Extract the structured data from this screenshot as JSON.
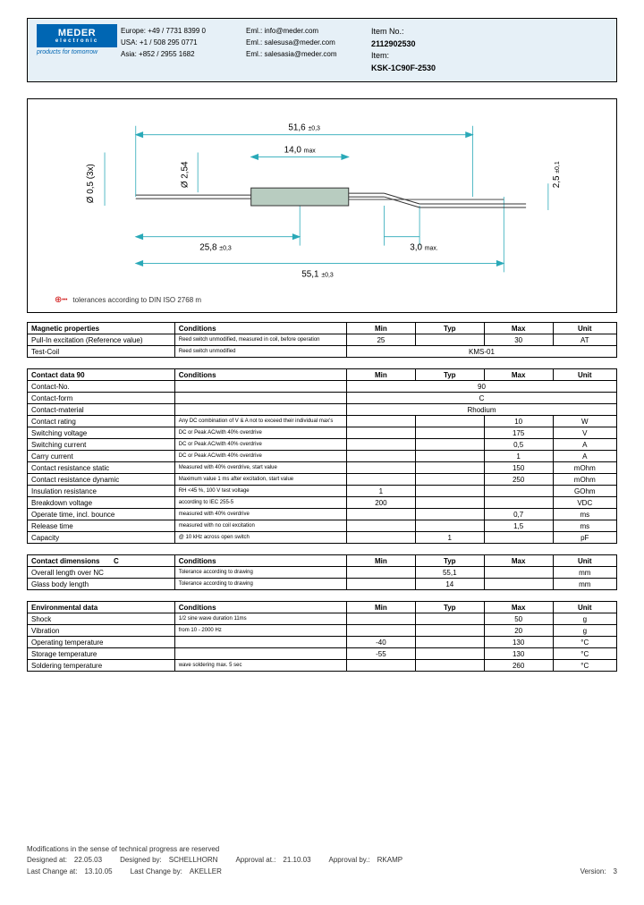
{
  "header": {
    "logo_main": "MEDER",
    "logo_sub": "electronic",
    "tagline": "products for tomorrow",
    "contacts": {
      "eu_phone_label": "Europe:",
      "eu_phone": "+49 / 7731 8399 0",
      "eu_email_label": "Eml.:",
      "eu_email": "info@meder.com",
      "us_phone_label": "USA:",
      "us_phone": "+1 / 508 295 0771",
      "us_email_label": "Eml.:",
      "us_email": "salesusa@meder.com",
      "as_phone_label": "Asia:",
      "as_phone": "+852 / 2955 1682",
      "as_email_label": "Eml.:",
      "as_email": "salesasia@meder.com"
    },
    "item_no_label": "Item No.:",
    "item_no": "2112902530",
    "item_label": "Item:",
    "item": "KSK-1C90F-2530"
  },
  "drawing": {
    "dim_516": "51,6",
    "tol_516": "±0,3",
    "dim_14": "14,0",
    "tol_14": "max",
    "dim_258": "25,8",
    "tol_258": "±0,3",
    "dim_551": "55,1",
    "tol_551": "±0,3",
    "dim_30": "3,0",
    "tol_30": "max.",
    "dim_25v": "2,5",
    "tol_25v": "±0,1",
    "dim_05": "Ø 0,5 (3x)",
    "dim_254": "Ø 2,54",
    "tolerance_note": "tolerances according to DIN ISO 2768 m",
    "colors": {
      "dim_line": "#2aa9b8",
      "part_body": "#b8ccc0",
      "part_outline": "#333333"
    }
  },
  "tables": {
    "magnetic": {
      "title": "Magnetic properties",
      "headers": [
        "Conditions",
        "Min",
        "Typ",
        "Max",
        "Unit"
      ],
      "rows": [
        {
          "param": "Pull-In excitation (Reference value)",
          "cond": "Reed switch unmodified, measured in coil, before operation",
          "min": "25",
          "typ": "",
          "max": "30",
          "unit": "AT"
        },
        {
          "param": "Test-Coil",
          "cond": "Reed switch unmodified",
          "span": "KMS-01"
        }
      ]
    },
    "contact": {
      "title": "Contact data  90",
      "headers": [
        "Conditions",
        "Min",
        "Typ",
        "Max",
        "Unit"
      ],
      "rows": [
        {
          "param": "Contact-No.",
          "cond": "",
          "span": "90"
        },
        {
          "param": "Contact-form",
          "cond": "",
          "span": "C"
        },
        {
          "param": "Contact-material",
          "cond": "",
          "span": "Rhodium"
        },
        {
          "param": "Contact rating",
          "cond": "Any DC combination of V & A not to exceed their individual max's",
          "min": "",
          "typ": "",
          "max": "10",
          "unit": "W"
        },
        {
          "param": "Switching voltage",
          "cond": "DC or Peak AC/with 40% overdrive",
          "min": "",
          "typ": "",
          "max": "175",
          "unit": "V"
        },
        {
          "param": "Switching current",
          "cond": "DC or Peak AC/with 40% overdrive",
          "min": "",
          "typ": "",
          "max": "0,5",
          "unit": "A"
        },
        {
          "param": "Carry current",
          "cond": "DC or Peak AC/with 40% overdrive",
          "min": "",
          "typ": "",
          "max": "1",
          "unit": "A"
        },
        {
          "param": "Contact resistance static",
          "cond": "Measured with 40% overdrive, start value",
          "min": "",
          "typ": "",
          "max": "150",
          "unit": "mOhm"
        },
        {
          "param": "Contact resistance dynamic",
          "cond": "Maximum value 1 ms after excitation, start value",
          "min": "",
          "typ": "",
          "max": "250",
          "unit": "mOhm"
        },
        {
          "param": "Insulation resistance",
          "cond": "RH <45 %, 100 V test voltage",
          "min": "1",
          "typ": "",
          "max": "",
          "unit": "GOhm"
        },
        {
          "param": "Breakdown voltage",
          "cond": "according to IEC 255-5",
          "min": "200",
          "typ": "",
          "max": "",
          "unit": "VDC"
        },
        {
          "param": "Operate time, incl. bounce",
          "cond": "measured with 40% overdrive",
          "min": "",
          "typ": "",
          "max": "0,7",
          "unit": "ms"
        },
        {
          "param": "Release time",
          "cond": "measured with no coil excitation",
          "min": "",
          "typ": "",
          "max": "1,5",
          "unit": "ms"
        },
        {
          "param": "Capacity",
          "cond": "@ 10 kHz across open switch",
          "min": "",
          "typ": "1",
          "max": "",
          "unit": "pF"
        }
      ]
    },
    "dimensions": {
      "title": "Contact dimensions",
      "title_suffix": "C",
      "headers": [
        "Conditions",
        "Min",
        "Typ",
        "Max",
        "Unit"
      ],
      "rows": [
        {
          "param": "Overall length over NC",
          "cond": "Tolerance according to drawing",
          "min": "",
          "typ": "55,1",
          "max": "",
          "unit": "mm"
        },
        {
          "param": "Glass body length",
          "cond": "Tolerance according to drawing",
          "min": "",
          "typ": "14",
          "max": "",
          "unit": "mm"
        }
      ]
    },
    "environmental": {
      "title": "Environmental data",
      "headers": [
        "Conditions",
        "Min",
        "Typ",
        "Max",
        "Unit"
      ],
      "rows": [
        {
          "param": "Shock",
          "cond": "1/2 sine wave duration 11ms",
          "min": "",
          "typ": "",
          "max": "50",
          "unit": "g"
        },
        {
          "param": "Vibration",
          "cond": "from 10 - 2000 Hz",
          "min": "",
          "typ": "",
          "max": "20",
          "unit": "g"
        },
        {
          "param": "Operating temperature",
          "cond": "",
          "min": "-40",
          "typ": "",
          "max": "130",
          "unit": "°C"
        },
        {
          "param": "Storage temperature",
          "cond": "",
          "min": "-55",
          "typ": "",
          "max": "130",
          "unit": "°C"
        },
        {
          "param": "Soldering temperature",
          "cond": "wave soldering max. 5 sec",
          "min": "",
          "typ": "",
          "max": "260",
          "unit": "°C"
        }
      ]
    }
  },
  "footer": {
    "mod_note": "Modifications in the sense of technical progress are reserved",
    "designed_at_label": "Designed at:",
    "designed_at": "22.05.03",
    "designed_by_label": "Designed by:",
    "designed_by": "SCHELLHORN",
    "approval_at_label": "Approval at.:",
    "approval_at": "21.10.03",
    "approval_by_label": "Approval by.:",
    "approval_by": "RKAMP",
    "last_change_at_label": "Last Change at:",
    "last_change_at": "13.10.05",
    "last_change_by_label": "Last Change by:",
    "last_change_by": "AKELLER",
    "version_label": "Version:",
    "version": "3"
  }
}
